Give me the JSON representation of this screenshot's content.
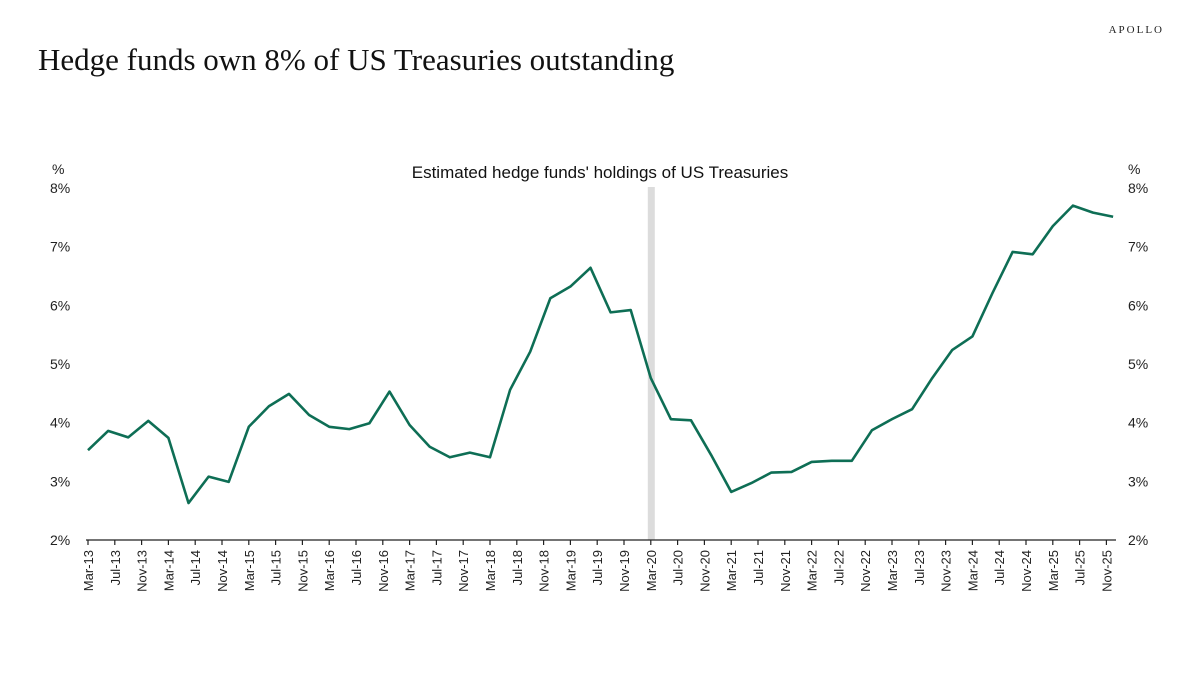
{
  "header": {
    "title": "Hedge funds own 8% of US Treasuries outstanding",
    "logo": "APOLLO"
  },
  "chart_data": {
    "type": "line",
    "title": "Estimated hedge funds' holdings of US Treasuries",
    "y_unit_left": "%",
    "y_unit_right": "%",
    "ylim": [
      2,
      8
    ],
    "yticks": [
      "2%",
      "3%",
      "4%",
      "5%",
      "6%",
      "7%",
      "8%"
    ],
    "ytick_values": [
      2,
      3,
      4,
      5,
      6,
      7,
      8
    ],
    "xtick_labels": [
      "Mar-13",
      "Jul-13",
      "Nov-13",
      "Mar-14",
      "Jul-14",
      "Nov-14",
      "Mar-15",
      "Jul-15",
      "Nov-15",
      "Mar-16",
      "Jul-16",
      "Nov-16",
      "Mar-17",
      "Jul-17",
      "Nov-17",
      "Mar-18",
      "Jul-18",
      "Nov-18",
      "Mar-19",
      "Jul-19",
      "Nov-19",
      "Mar-20",
      "Jul-20",
      "Nov-20",
      "Mar-21",
      "Jul-21",
      "Nov-21",
      "Mar-22",
      "Jul-22",
      "Nov-22",
      "Mar-23",
      "Jul-23",
      "Nov-23",
      "Mar-24",
      "Jul-24",
      "Nov-24",
      "Mar-25",
      "Jul-25",
      "Nov-25"
    ],
    "grid": false,
    "line_color": "#0e6e55",
    "shading_color": "#dcdcdc",
    "shaded_period": "Mar-20",
    "series": [
      {
        "x": [
          "Mar-13",
          "Jun-13",
          "Sep-13",
          "Dec-13",
          "Mar-14",
          "Jun-14",
          "Sep-14",
          "Dec-14",
          "Mar-15",
          "Jun-15",
          "Sep-15",
          "Dec-15",
          "Mar-16",
          "Jun-16",
          "Sep-16",
          "Dec-16",
          "Mar-17",
          "Jun-17",
          "Sep-17",
          "Dec-17",
          "Mar-18",
          "Jun-18",
          "Sep-18",
          "Dec-18",
          "Mar-19",
          "Jun-19",
          "Sep-19",
          "Dec-19",
          "Mar-20",
          "Jun-20",
          "Sep-20",
          "Dec-20",
          "Mar-21",
          "Jun-21",
          "Sep-21",
          "Dec-21",
          "Mar-22",
          "Jun-22",
          "Sep-22",
          "Dec-22",
          "Mar-23",
          "Jun-23",
          "Sep-23",
          "Dec-23",
          "Mar-24",
          "Jun-24",
          "Sep-24",
          "Dec-24",
          "Mar-25",
          "Jun-25",
          "Sep-25",
          "Dec-25"
        ],
        "values": [
          3.53,
          3.86,
          3.75,
          4.03,
          3.74,
          2.63,
          3.08,
          2.99,
          3.93,
          4.28,
          4.49,
          4.13,
          3.93,
          3.89,
          3.99,
          4.53,
          3.96,
          3.59,
          3.41,
          3.49,
          3.41,
          4.56,
          5.21,
          6.12,
          6.32,
          6.64,
          5.88,
          5.92,
          4.76,
          4.06,
          4.04,
          3.45,
          2.82,
          2.97,
          3.15,
          3.16,
          3.33,
          3.35,
          3.35,
          3.87,
          4.06,
          4.23,
          4.76,
          5.24,
          5.47,
          6.21,
          6.91,
          6.87,
          7.35,
          7.7,
          7.58,
          7.51
        ]
      }
    ]
  }
}
